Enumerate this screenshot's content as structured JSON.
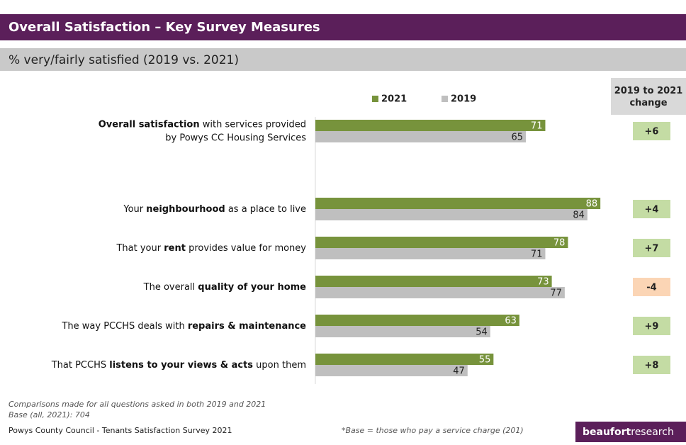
{
  "header": {
    "title": "Overall Satisfaction – Key Survey Measures",
    "subtitle": "% very/fairly satisfied (2019 vs. 2021)"
  },
  "chart_data": {
    "type": "bar",
    "orientation": "horizontal",
    "categories": [
      [
        [
          {
            "text": "Overall satisfaction",
            "bold": true
          },
          {
            "text": " with services provided"
          }
        ],
        [
          {
            "text": "by Powys CC Housing Services"
          }
        ]
      ],
      null,
      [
        [
          {
            "text": "Your "
          },
          {
            "text": "neighbourhood",
            "bold": true
          },
          {
            "text": " as a place to live"
          }
        ]
      ],
      [
        [
          {
            "text": "That your "
          },
          {
            "text": "rent",
            "bold": true
          },
          {
            "text": " provides value for money"
          }
        ]
      ],
      [
        [
          {
            "text": "The overall "
          },
          {
            "text": "quality of your home",
            "bold": true
          }
        ]
      ],
      [
        [
          {
            "text": "The way PCCHS deals with "
          },
          {
            "text": "repairs & maintenance",
            "bold": true
          }
        ]
      ],
      [
        [
          {
            "text": "That PCCHS "
          },
          {
            "text": "listens to your views & acts",
            "bold": true
          },
          {
            "text": " upon them"
          }
        ]
      ]
    ],
    "series": [
      {
        "name": "2021",
        "color": "#77933c",
        "values": [
          71,
          null,
          88,
          78,
          73,
          63,
          55
        ]
      },
      {
        "name": "2019",
        "color": "#bfbfbf",
        "values": [
          65,
          null,
          84,
          71,
          77,
          54,
          47
        ]
      }
    ],
    "xlim": [
      0,
      100
    ],
    "change": {
      "title": "2019 to 2021 change",
      "values": [
        6,
        null,
        4,
        7,
        -4,
        9,
        8
      ],
      "value_labels": [
        "+6",
        null,
        "+4",
        "+7",
        "-4",
        "+9",
        "+8"
      ],
      "positive_color": "#c4dca4",
      "negative_color": "#fbd5b5"
    }
  },
  "footer": {
    "notes": [
      "Comparisons made for all questions asked in both 2019 and 2021",
      "Base (all, 2021): 704"
    ],
    "source": "Powys County Council - Tenants Satisfaction Survey 2021",
    "base_note": "*Base = those who pay a service charge (201)",
    "logo": [
      {
        "text": "beaufort",
        "bold": true
      },
      {
        "text": "research"
      }
    ]
  }
}
